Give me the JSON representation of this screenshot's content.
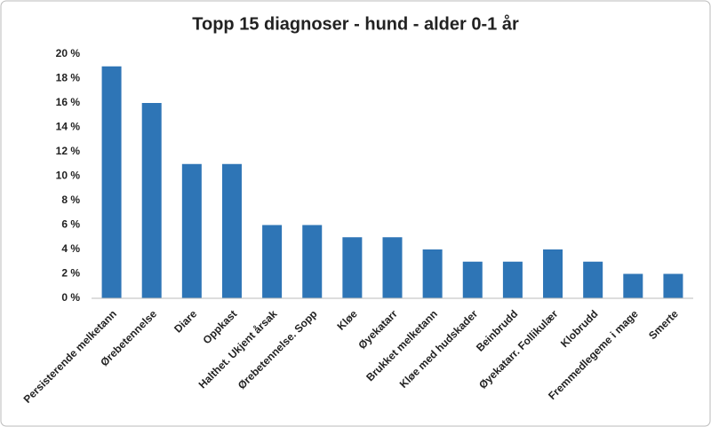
{
  "chart_data": {
    "type": "bar",
    "title": "Topp 15 diagnoser - hund - alder 0-1 år",
    "categories": [
      "Persisterende melketann",
      "Ørebetennelse",
      "Diare",
      "Oppkast",
      "Halthet. Ukjent årsak",
      "Ørebetennelse. Sopp",
      "Kløe",
      "Øyekatarr",
      "Brukket melketann",
      "Kløe med hudskader",
      "Beinbrudd",
      "Øyekatarr. Follikulær",
      "Klobrudd",
      "Fremmedlegeme i mage",
      "Smerte"
    ],
    "values": [
      19,
      16,
      11,
      11,
      6,
      6,
      5,
      5,
      4,
      3,
      3,
      4,
      3,
      2,
      2
    ],
    "color": "#2e75b6",
    "ylim": [
      0,
      20
    ],
    "yticks": [
      {
        "value": 0,
        "label": "0 %"
      },
      {
        "value": 2,
        "label": "2 %"
      },
      {
        "value": 4,
        "label": "4 %"
      },
      {
        "value": 6,
        "label": "6 %"
      },
      {
        "value": 8,
        "label": "8 %"
      },
      {
        "value": 10,
        "label": "10 %"
      },
      {
        "value": 12,
        "label": "12 %"
      },
      {
        "value": 14,
        "label": "14 %"
      },
      {
        "value": 16,
        "label": "16 %"
      },
      {
        "value": 18,
        "label": "18 %"
      },
      {
        "value": 20,
        "label": "20 %"
      }
    ],
    "grid": false
  }
}
